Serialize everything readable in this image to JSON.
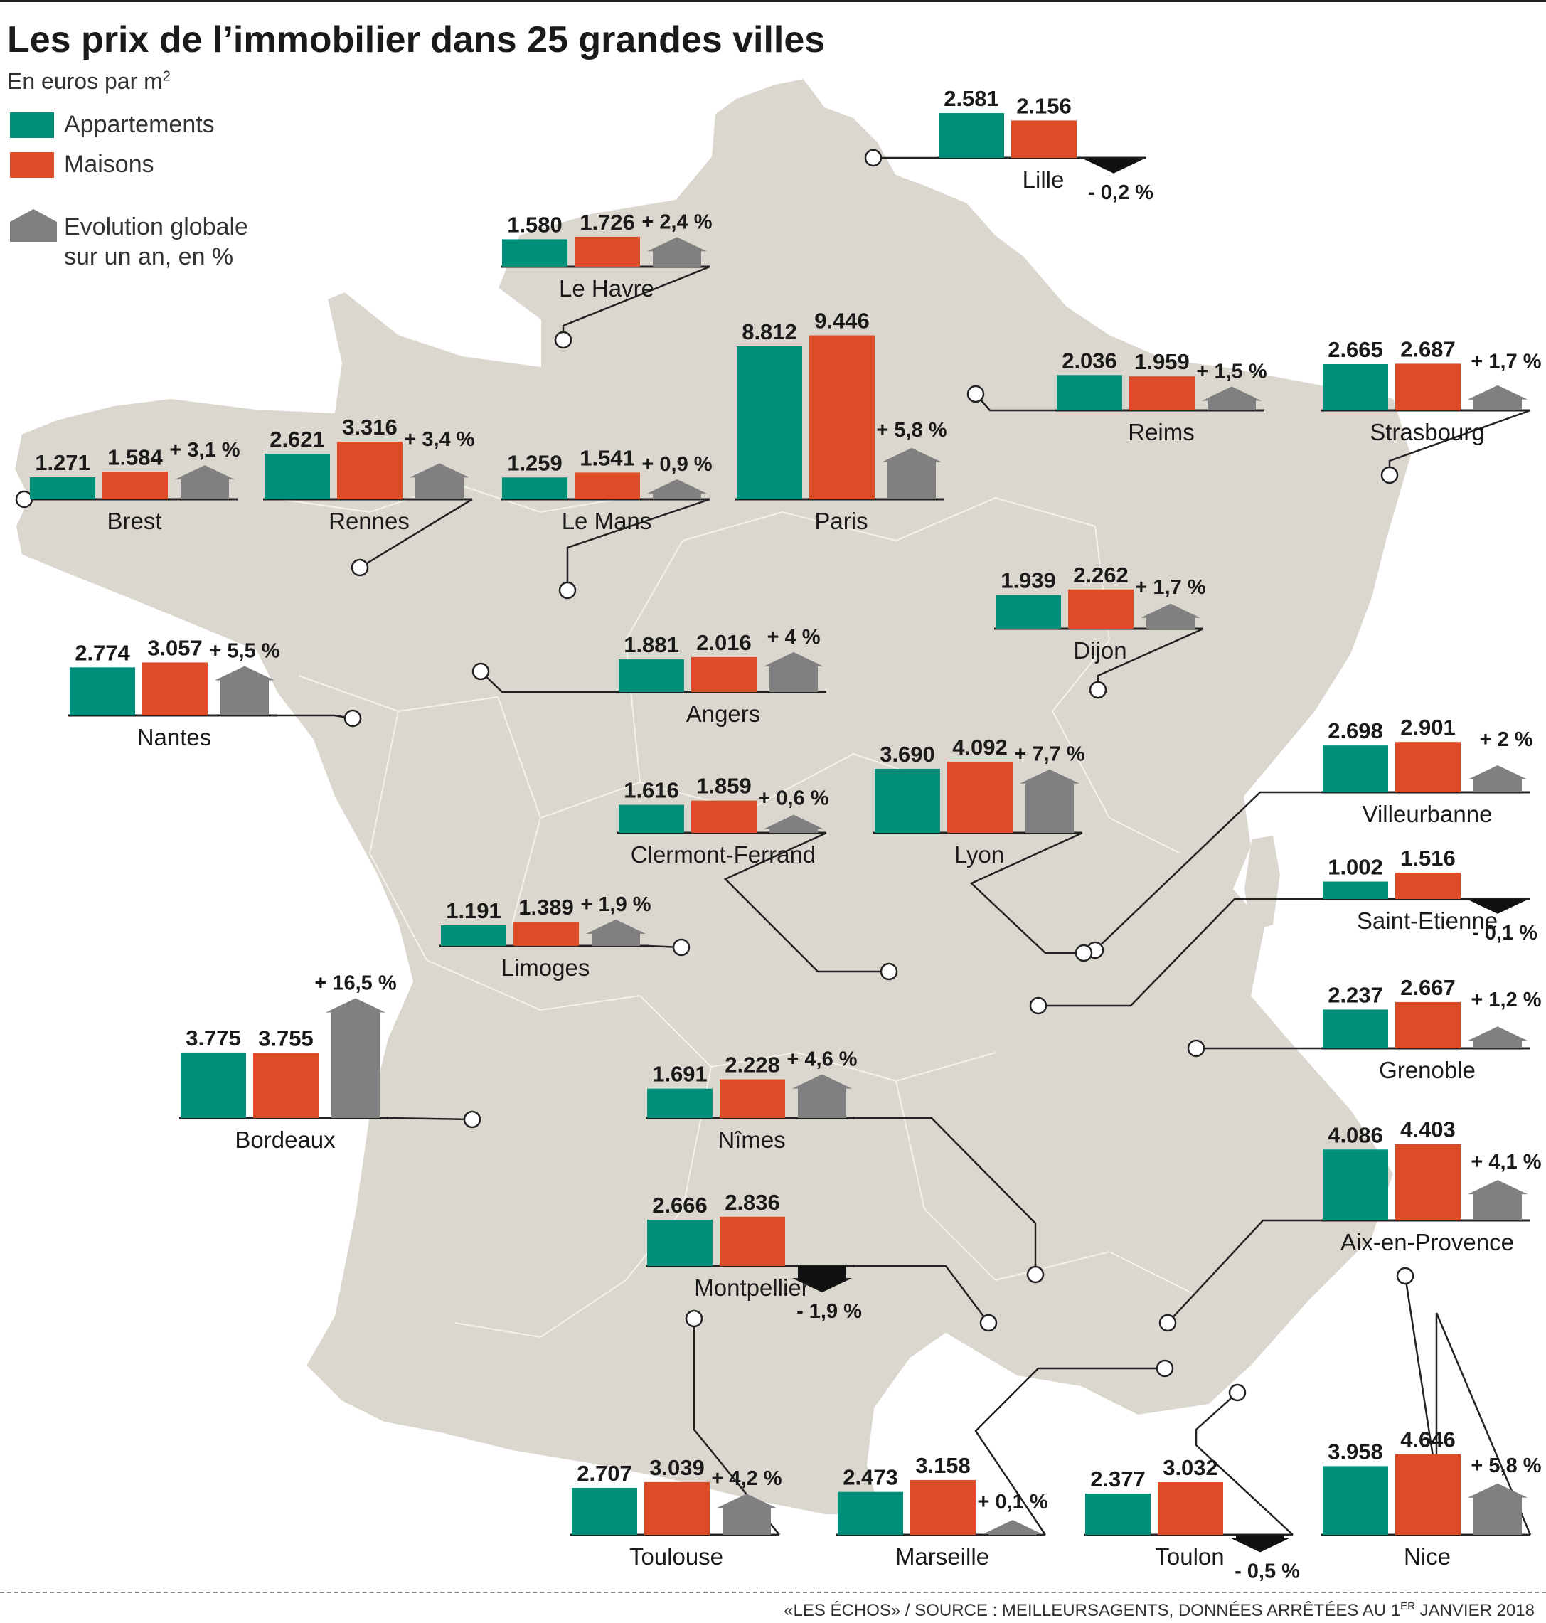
{
  "title": "Les prix de l’immobilier dans 25 grandes villes",
  "subtitle": "En euros par m",
  "subtitle_sup": "2",
  "legend": {
    "appartements": "Appartements",
    "maisons": "Maisons",
    "evolution_line1": "Evolution globale",
    "evolution_line2": "sur un an, en %"
  },
  "colors": {
    "appartements": "#00907a",
    "maisons": "#dd4b27",
    "evolution": "#808080",
    "evolution_negative": "#111111",
    "map": "#dbd7cf",
    "map_border": "#ffffff"
  },
  "source": {
    "before": "«LES ÉCHOS» / SOURCE : MEILLEURSAGENTS, DONNÉES ARRÊTÉES AU 1",
    "sup": "ER",
    "after": " JANVIER 2018"
  },
  "chart_data": {
    "type": "bar",
    "title": "Les prix de l’immobilier dans 25 grandes villes",
    "unit": "En euros par m²",
    "series_names": [
      "Appartements",
      "Maisons",
      "Evolution globale sur un an, en %"
    ],
    "cities": [
      {
        "name": "Lille",
        "appartements": 2581,
        "maisons": 2156,
        "evolution": -0.2,
        "label_app": "2.581",
        "label_mai": "2.156",
        "label_evo": "- 0,2 %"
      },
      {
        "name": "Le Havre",
        "appartements": 1580,
        "maisons": 1726,
        "evolution": 2.4,
        "label_app": "1.580",
        "label_mai": "1.726",
        "label_evo": "+ 2,4 %"
      },
      {
        "name": "Paris",
        "appartements": 8812,
        "maisons": 9446,
        "evolution": 5.8,
        "label_app": "8.812",
        "label_mai": "9.446",
        "label_evo": "+ 5,8 %"
      },
      {
        "name": "Reims",
        "appartements": 2036,
        "maisons": 1959,
        "evolution": 1.5,
        "label_app": "2.036",
        "label_mai": "1.959",
        "label_evo": "+ 1,5 %"
      },
      {
        "name": "Strasbourg",
        "appartements": 2665,
        "maisons": 2687,
        "evolution": 1.7,
        "label_app": "2.665",
        "label_mai": "2.687",
        "label_evo": "+ 1,7  %"
      },
      {
        "name": "Brest",
        "appartements": 1271,
        "maisons": 1584,
        "evolution": 3.1,
        "label_app": "1.271",
        "label_mai": "1.584",
        "label_evo": "+ 3,1 %"
      },
      {
        "name": "Rennes",
        "appartements": 2621,
        "maisons": 3316,
        "evolution": 3.4,
        "label_app": "2.621",
        "label_mai": "3.316",
        "label_evo": "+ 3,4 %"
      },
      {
        "name": "Le Mans",
        "appartements": 1259,
        "maisons": 1541,
        "evolution": 0.9,
        "label_app": "1.259",
        "label_mai": "1.541",
        "label_evo": "+ 0,9 %"
      },
      {
        "name": "Dijon",
        "appartements": 1939,
        "maisons": 2262,
        "evolution": 1.7,
        "label_app": "1.939",
        "label_mai": "2.262",
        "label_evo": "+ 1,7  %"
      },
      {
        "name": "Nantes",
        "appartements": 2774,
        "maisons": 3057,
        "evolution": 5.5,
        "label_app": "2.774",
        "label_mai": "3.057",
        "label_evo": "+ 5,5 %"
      },
      {
        "name": "Angers",
        "appartements": 1881,
        "maisons": 2016,
        "evolution": 4,
        "label_app": "1.881",
        "label_mai": "2.016",
        "label_evo": "+ 4 %"
      },
      {
        "name": "Villeurbanne",
        "appartements": 2698,
        "maisons": 2901,
        "evolution": 2,
        "label_app": "2.698",
        "label_mai": "2.901",
        "label_evo": "+ 2 %"
      },
      {
        "name": "Clermont-Ferrand",
        "appartements": 1616,
        "maisons": 1859,
        "evolution": 0.6,
        "label_app": "1.616",
        "label_mai": "1.859",
        "label_evo": "+ 0,6 %"
      },
      {
        "name": "Lyon",
        "appartements": 3690,
        "maisons": 4092,
        "evolution": 7.7,
        "label_app": "3.690",
        "label_mai": "4.092",
        "label_evo": "+ 7,7 %"
      },
      {
        "name": "Saint-Etienne",
        "appartements": 1002,
        "maisons": 1516,
        "evolution": -0.1,
        "label_app": "1.002",
        "label_mai": "1.516",
        "label_evo": "- 0,1 %"
      },
      {
        "name": "Limoges",
        "appartements": 1191,
        "maisons": 1389,
        "evolution": 1.9,
        "label_app": "1.191",
        "label_mai": "1.389",
        "label_evo": "+ 1,9 %"
      },
      {
        "name": "Grenoble",
        "appartements": 2237,
        "maisons": 2667,
        "evolution": 1.2,
        "label_app": "2.237",
        "label_mai": "2.667",
        "label_evo": "+ 1,2 %"
      },
      {
        "name": "Bordeaux",
        "appartements": 3775,
        "maisons": 3755,
        "evolution": 16.5,
        "label_app": "3.775",
        "label_mai": "3.755",
        "label_evo": "+ 16,5 %"
      },
      {
        "name": "Nîmes",
        "appartements": 1691,
        "maisons": 2228,
        "evolution": 4.6,
        "label_app": "1.691",
        "label_mai": "2.228",
        "label_evo": "+ 4,6 %"
      },
      {
        "name": "Aix-en-Provence",
        "appartements": 4086,
        "maisons": 4403,
        "evolution": 4.1,
        "label_app": "4.086",
        "label_mai": "4.403",
        "label_evo": "+ 4,1 %"
      },
      {
        "name": "Montpellier",
        "appartements": 2666,
        "maisons": 2836,
        "evolution": -1.9,
        "label_app": "2.666",
        "label_mai": "2.836",
        "label_evo": "- 1,9 %"
      },
      {
        "name": "Toulouse",
        "appartements": 2707,
        "maisons": 3039,
        "evolution": 4.2,
        "label_app": "2.707",
        "label_mai": "3.039",
        "label_evo": "+ 4,2 %"
      },
      {
        "name": "Marseille",
        "appartements": 2473,
        "maisons": 3158,
        "evolution": 0.1,
        "label_app": "2.473",
        "label_mai": "3.158",
        "label_evo": "+ 0,1 %"
      },
      {
        "name": "Toulon",
        "appartements": 2377,
        "maisons": 3032,
        "evolution": -0.5,
        "label_app": "2.377",
        "label_mai": "3.032",
        "label_evo": "- 0,5 %"
      },
      {
        "name": "Nice",
        "appartements": 3958,
        "maisons": 4646,
        "evolution": 5.8,
        "label_app": "3.958",
        "label_mai": "4.646",
        "label_evo": "+ 5,8 %"
      }
    ]
  }
}
